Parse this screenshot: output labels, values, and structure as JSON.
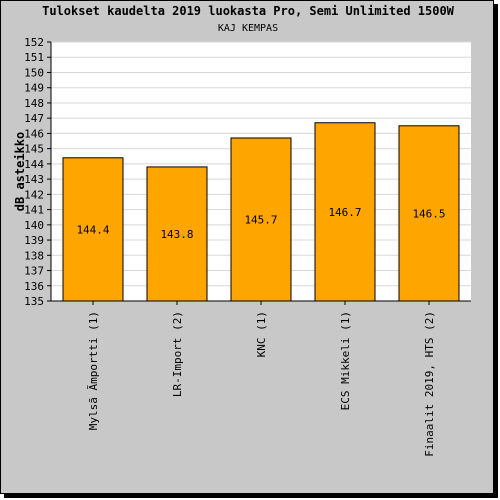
{
  "chart_data": {
    "type": "bar",
    "title": "Tulokset kaudelta 2019 luokasta Pro, Semi Unlimited 1500W",
    "subtitle": "KAJ KEMPAS",
    "xlabel": "",
    "ylabel": "dB asteikko",
    "categories": [
      "Mylsä Ämportti (1)",
      "LR-Import (2)",
      "KNC (1)",
      "ECS Mikkeli (1)",
      "Finaalit 2019, HTS (2)"
    ],
    "category_display": [
      "Mylsã Ãmportti (1)",
      "LR-Import (2)",
      "KNC (1)",
      "ECS Mikkeli (1)",
      "Finaalit 2019, HTS (2)"
    ],
    "values": [
      144.4,
      143.8,
      145.7,
      146.7,
      146.5
    ],
    "value_labels": [
      "144.4",
      "143.8",
      "145.7",
      "146.7",
      "146.5"
    ],
    "ylim": [
      135,
      152
    ],
    "yticks": [
      135,
      136,
      137,
      138,
      139,
      140,
      141,
      142,
      143,
      144,
      145,
      146,
      147,
      148,
      149,
      150,
      151,
      152
    ],
    "grid": true,
    "legend": "none",
    "colors": {
      "bar": "#ffa500",
      "background": "#c8c8c8",
      "plot": "#ffffff",
      "grid": "#d8d8d8"
    }
  }
}
